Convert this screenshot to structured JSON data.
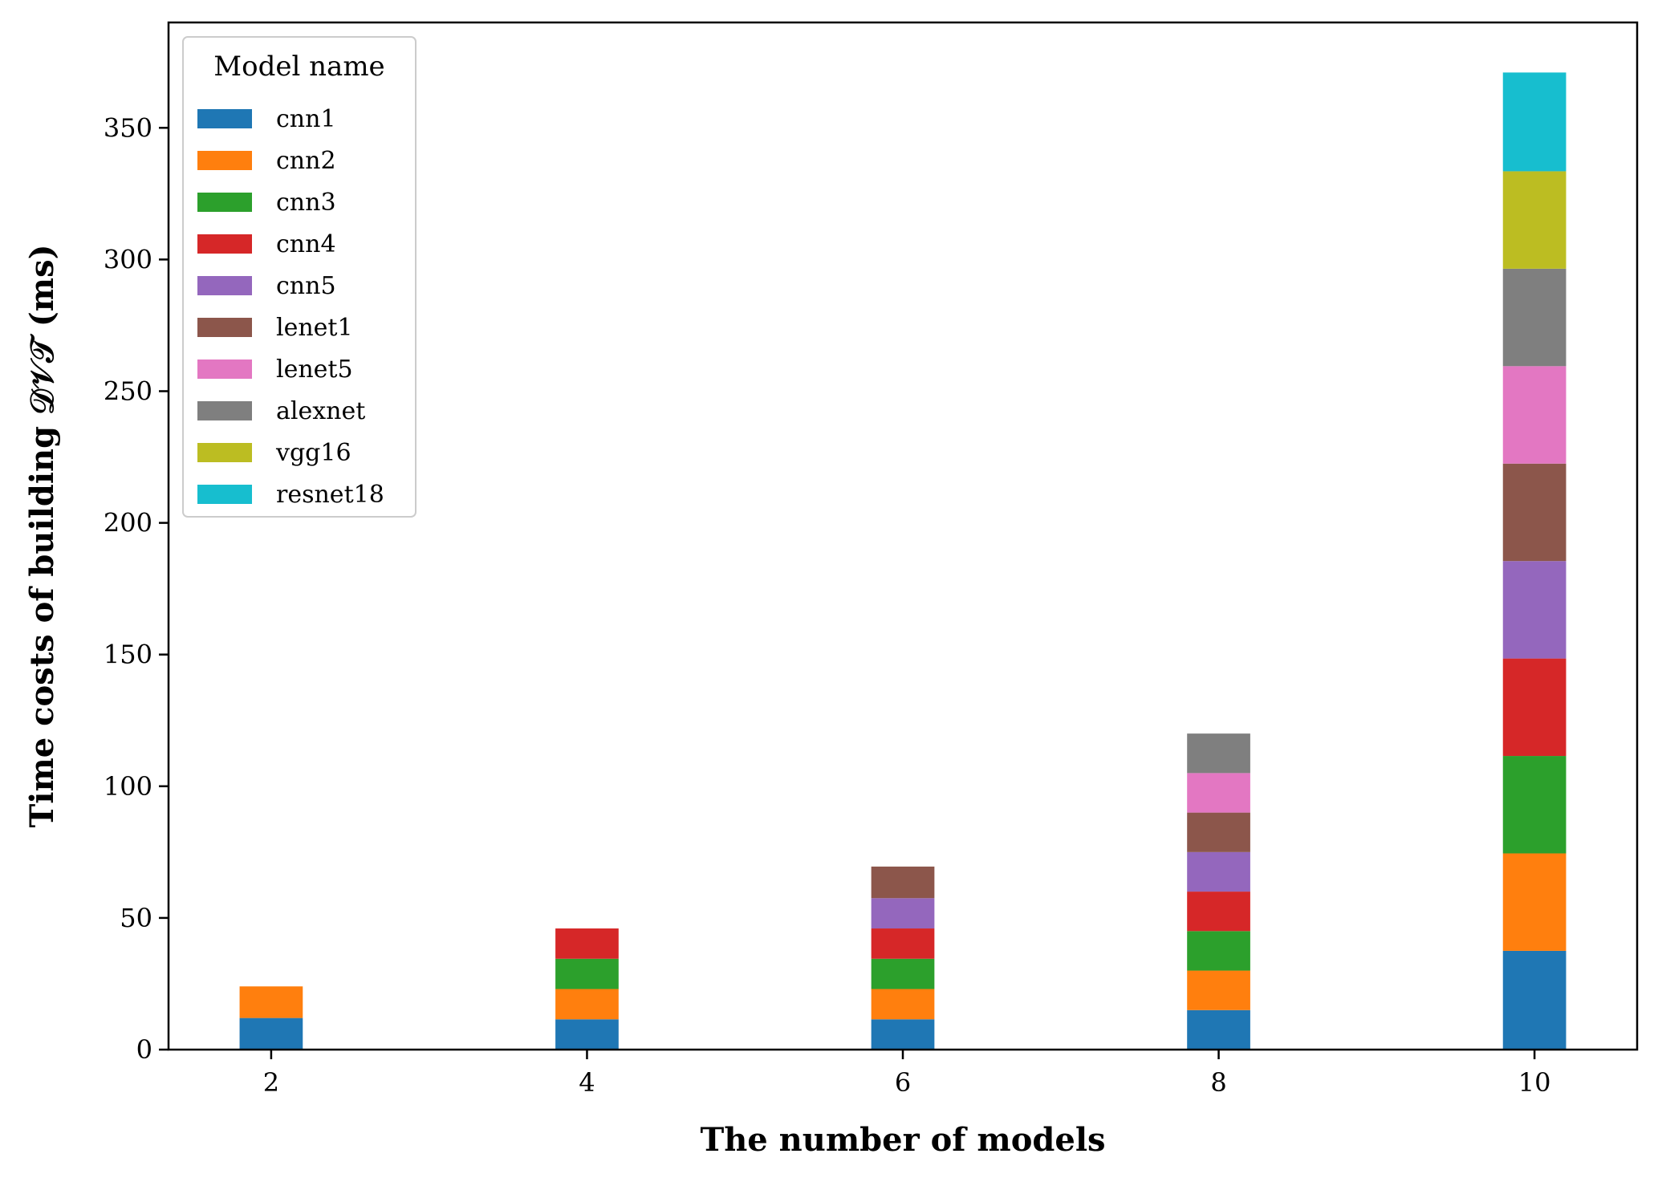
{
  "chart_data": {
    "type": "bar",
    "stacked": true,
    "x": [
      2,
      4,
      6,
      8,
      10
    ],
    "xlabel": "The number of models",
    "ylabel": "Time costs of building 𝒟𝒱𝒯 (ms)",
    "xlim": [
      1.35,
      10.65
    ],
    "ylim": [
      0,
      390
    ],
    "xticks": [
      2,
      4,
      6,
      8,
      10
    ],
    "yticks": [
      0,
      50,
      100,
      150,
      200,
      250,
      300,
      350
    ],
    "grid": false,
    "legend": {
      "title": "Model name",
      "placement": "top-left"
    },
    "series": [
      {
        "name": "cnn1",
        "color": "#1f77b4",
        "values": [
          12,
          11.5,
          11.5,
          15,
          37.5
        ]
      },
      {
        "name": "cnn2",
        "color": "#ff7f0e",
        "values": [
          12,
          11.5,
          11.5,
          15,
          37
        ]
      },
      {
        "name": "cnn3",
        "color": "#2ca02c",
        "values": [
          null,
          11.5,
          11.5,
          15,
          37
        ]
      },
      {
        "name": "cnn4",
        "color": "#d62728",
        "values": [
          null,
          11.5,
          11.5,
          15,
          37
        ]
      },
      {
        "name": "cnn5",
        "color": "#9467bd",
        "values": [
          null,
          null,
          11.5,
          15,
          37
        ]
      },
      {
        "name": "lenet1",
        "color": "#8c564b",
        "values": [
          null,
          null,
          12,
          15,
          37
        ]
      },
      {
        "name": "lenet5",
        "color": "#e377c2",
        "values": [
          null,
          null,
          null,
          15,
          37
        ]
      },
      {
        "name": "alexnet",
        "color": "#7f7f7f",
        "values": [
          null,
          null,
          null,
          15,
          37
        ]
      },
      {
        "name": "vgg16",
        "color": "#bcbd22",
        "values": [
          null,
          null,
          null,
          null,
          37
        ]
      },
      {
        "name": "resnet18",
        "color": "#17becf",
        "values": [
          null,
          null,
          null,
          null,
          37.5
        ]
      }
    ]
  }
}
